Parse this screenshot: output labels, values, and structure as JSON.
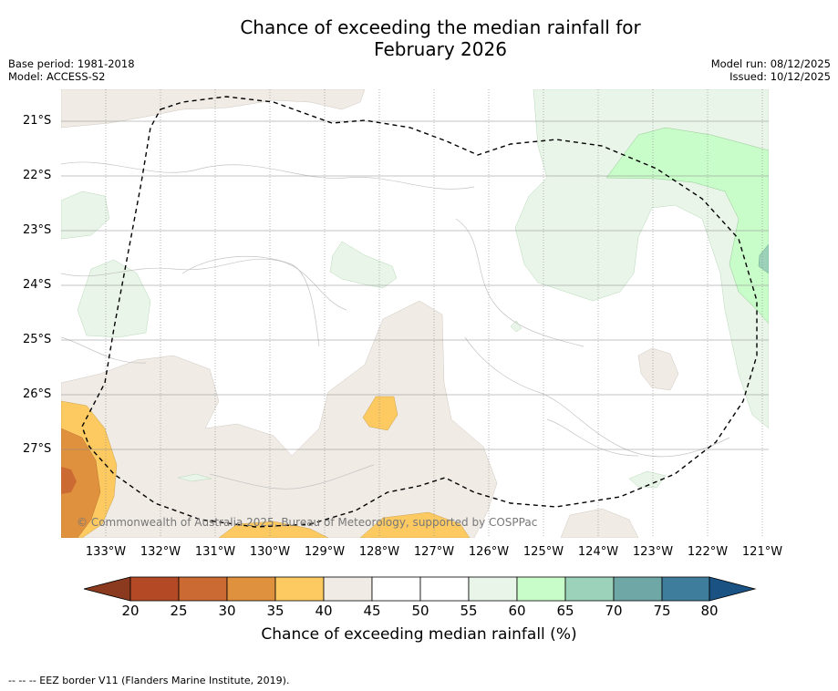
{
  "title_line1": "Chance of exceeding the median rainfall for",
  "title_line2": "February 2026",
  "meta_left": {
    "base_period": "Base period: 1981-2018",
    "model": "Model: ACCESS-S2"
  },
  "meta_right": {
    "model_run": "Model run: 08/12/2025",
    "issued": "Issued: 10/12/2025"
  },
  "latitudes": [
    "21°S",
    "22°S",
    "23°S",
    "24°S",
    "25°S",
    "26°S",
    "27°S"
  ],
  "longitudes": [
    "133°W",
    "132°W",
    "131°W",
    "130°W",
    "129°W",
    "128°W",
    "127°W",
    "126°W",
    "125°W",
    "124°W",
    "123°W",
    "122°W",
    "121°W"
  ],
  "copyright": "© Commonwealth of Australia 2025, Bureau of Meteorology, supported by COSPPac",
  "colorbar": {
    "label": "Chance of exceeding median rainfall (%)",
    "ticks": [
      "20",
      "25",
      "30",
      "35",
      "40",
      "45",
      "50",
      "55",
      "60",
      "65",
      "70",
      "75",
      "80"
    ],
    "colors": [
      "#8b3a1f",
      "#b44a25",
      "#cc6a33",
      "#e0913e",
      "#fdca62",
      "#f0ebe5",
      "#ffffff",
      "#ffffff",
      "#e9f5e9",
      "#c8fcc8",
      "#9bd2b9",
      "#6fa7a7",
      "#3f7d9c",
      "#1a5283"
    ]
  },
  "footer": "--  --  -- EEZ border V11 (Flanders Marine Institute, 2019)."
}
